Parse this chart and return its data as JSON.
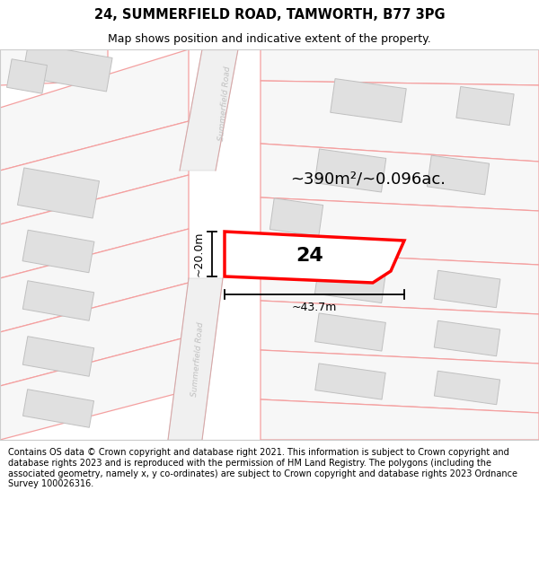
{
  "title": "24, SUMMERFIELD ROAD, TAMWORTH, B77 3PG",
  "subtitle": "Map shows position and indicative extent of the property.",
  "footer": "Contains OS data © Crown copyright and database right 2021. This information is subject to Crown copyright and database rights 2023 and is reproduced with the permission of HM Land Registry. The polygons (including the associated geometry, namely x, y co-ordinates) are subject to Crown copyright and database rights 2023 Ordnance Survey 100026316.",
  "area_label": "~390m²/~0.096ac.",
  "width_label": "~43.7m",
  "height_label": "~20.0m",
  "plot_number": "24",
  "bg_white": "#ffffff",
  "map_bg": "#ffffff",
  "parcel_fill": "#f7f7f7",
  "parcel_edge": "#f4a0a0",
  "building_fill": "#e0e0e0",
  "building_edge": "#c0c0c0",
  "road_label_color": "#c0c0c0",
  "highlight_red": "#ff0000",
  "dim_black": "#000000"
}
